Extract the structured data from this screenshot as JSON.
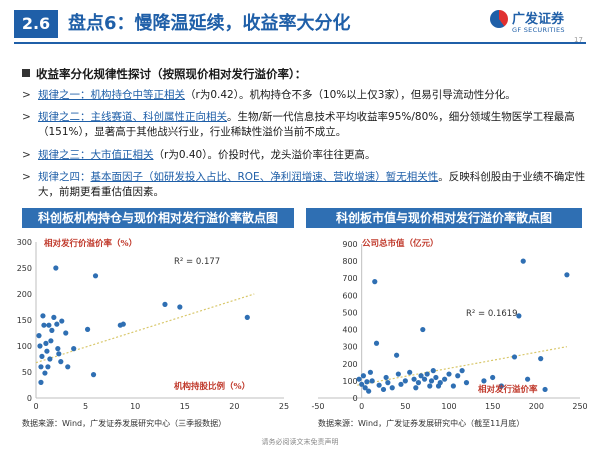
{
  "header": {
    "section_number": "2.6",
    "title": "盘点6：慢降温延续，收益率大分化",
    "logo_cn": "广发证券",
    "logo_en": "GF SECURITIES",
    "page_number": "17"
  },
  "subtitle": "收益率分化规律性探讨（按照现价相对发行溢价率）：",
  "rules": [
    {
      "lead": "规律之一：机构持仓中等正相关",
      "rest": "（r为0.42）。机构持仓不多（10%以上仅3家），但易引导流动性分化。"
    },
    {
      "lead": "规律之二：主线赛道、科创属性正向相关",
      "rest": "。生物/新一代信息技术平均收益率95%/80%，细分领域生物医学工程最高（151%），显著高于其他战兴行业，行业稀缺性溢价当前不成立。"
    },
    {
      "lead": "规律之三：大市值正相关",
      "rest": "（r为0.40）。价投时代，龙头溢价率往往更高。"
    },
    {
      "lead": "规律之四：",
      "mid": "基本面因子（如研发投入占比、ROE、净利润增速、营收增速）暂无相关性",
      "rest": "。反映科创股由于业绩不确定性大，前期更看重估值因素。"
    }
  ],
  "footer": "请务必阅读文末免责声明",
  "chart_data": [
    {
      "type": "scatter",
      "title": "科创板机构持仓与现价相对发行溢价率散点图",
      "ylabel": "相对发行价溢价率（%）",
      "xlabel": "机构持股比例（%）",
      "annotation": "R² = 0.177",
      "xlim": [
        0,
        25
      ],
      "ylim": [
        0,
        300
      ],
      "xticks": [
        0,
        5,
        10,
        15,
        20,
        25
      ],
      "yticks": [
        0,
        50,
        100,
        150,
        200,
        250,
        300
      ],
      "trendline": {
        "x": [
          0,
          22
        ],
        "y": [
          68,
          200
        ]
      },
      "points": [
        [
          0.3,
          120
        ],
        [
          0.4,
          100
        ],
        [
          0.5,
          60
        ],
        [
          0.5,
          30
        ],
        [
          0.6,
          80
        ],
        [
          0.7,
          158
        ],
        [
          0.8,
          140
        ],
        [
          0.9,
          48
        ],
        [
          1.0,
          105
        ],
        [
          1.1,
          90
        ],
        [
          1.2,
          60
        ],
        [
          1.3,
          140
        ],
        [
          1.4,
          75
        ],
        [
          1.5,
          110
        ],
        [
          1.6,
          130
        ],
        [
          1.8,
          155
        ],
        [
          2.0,
          250
        ],
        [
          2.1,
          142
        ],
        [
          2.2,
          95
        ],
        [
          2.3,
          85
        ],
        [
          2.5,
          70
        ],
        [
          2.6,
          148
        ],
        [
          3.0,
          125
        ],
        [
          3.2,
          60
        ],
        [
          3.8,
          95
        ],
        [
          5.2,
          132
        ],
        [
          5.8,
          45
        ],
        [
          6.0,
          235
        ],
        [
          8.5,
          140
        ],
        [
          8.8,
          142
        ],
        [
          13.0,
          180
        ],
        [
          14.5,
          175
        ],
        [
          21.3,
          155
        ]
      ],
      "source": "数据来源：Wind，广发证券发展研究中心（三季报数据）"
    },
    {
      "type": "scatter",
      "title": "科创板市值与现价相对发行溢价率散点图",
      "ylabel": "公司总市值（亿元）",
      "xlabel": "相对发行溢价率",
      "annotation": "R² = 0.1619",
      "xlim": [
        -50,
        250
      ],
      "ylim": [
        0,
        900
      ],
      "xticks": [
        -50,
        0,
        50,
        100,
        150,
        200,
        250
      ],
      "yticks": [
        0,
        100,
        200,
        300,
        400,
        500,
        600,
        700,
        800,
        900
      ],
      "trendline": {
        "x": [
          -5,
          235
        ],
        "y": [
          75,
          300
        ]
      },
      "points": [
        [
          -3,
          110
        ],
        [
          0,
          80
        ],
        [
          2,
          130
        ],
        [
          4,
          60
        ],
        [
          6,
          95
        ],
        [
          8,
          40
        ],
        [
          10,
          150
        ],
        [
          12,
          100
        ],
        [
          15,
          680
        ],
        [
          17,
          320
        ],
        [
          20,
          75
        ],
        [
          25,
          50
        ],
        [
          28,
          120
        ],
        [
          30,
          90
        ],
        [
          35,
          60
        ],
        [
          40,
          250
        ],
        [
          42,
          140
        ],
        [
          45,
          80
        ],
        [
          50,
          100
        ],
        [
          55,
          150
        ],
        [
          60,
          110
        ],
        [
          62,
          60
        ],
        [
          65,
          90
        ],
        [
          68,
          130
        ],
        [
          70,
          400
        ],
        [
          72,
          110
        ],
        [
          75,
          140
        ],
        [
          78,
          70
        ],
        [
          80,
          100
        ],
        [
          82,
          160
        ],
        [
          85,
          120
        ],
        [
          88,
          70
        ],
        [
          90,
          90
        ],
        [
          95,
          110
        ],
        [
          100,
          140
        ],
        [
          105,
          70
        ],
        [
          110,
          130
        ],
        [
          115,
          160
        ],
        [
          120,
          90
        ],
        [
          140,
          100
        ],
        [
          150,
          120
        ],
        [
          160,
          70
        ],
        [
          175,
          240
        ],
        [
          180,
          480
        ],
        [
          185,
          800
        ],
        [
          190,
          110
        ],
        [
          205,
          230
        ],
        [
          210,
          50
        ],
        [
          235,
          720
        ]
      ],
      "source": "数据来源：Wind，广发证券发展研究中心（截至11月底）"
    }
  ]
}
